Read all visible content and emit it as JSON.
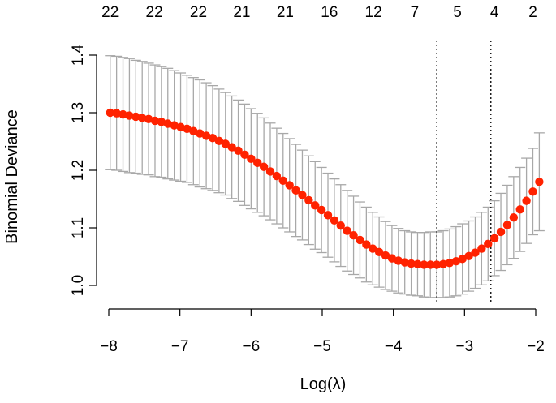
{
  "chart_data": {
    "type": "scatter",
    "xlabel": "Log(λ)",
    "ylabel": "Binomial Deviance",
    "xlim": [
      -8.1,
      -1.85
    ],
    "ylim": [
      0.975,
      1.425
    ],
    "x_ticks": [
      -8,
      -7,
      -6,
      -5,
      -4,
      -3,
      -2
    ],
    "x_tick_labels": [
      "−8",
      "−7",
      "−6",
      "−5",
      "−4",
      "−3",
      "−2"
    ],
    "y_ticks": [
      1.0,
      1.1,
      1.2,
      1.3,
      1.4
    ],
    "y_tick_labels": [
      "1.0",
      "1.1",
      "1.2",
      "1.3",
      "1.4"
    ],
    "top_axis": {
      "positions": [
        -7.98,
        -7.36,
        -6.74,
        -6.13,
        -5.52,
        -4.9,
        -4.28,
        -3.7,
        -3.1,
        -2.58,
        -2.04
      ],
      "labels": [
        "22",
        "22",
        "22",
        "21",
        "21",
        "16",
        "12",
        "7",
        "5",
        "4",
        "2"
      ]
    },
    "reference_lines": [
      -3.39,
      -2.63
    ],
    "point_color": "#ff2200",
    "errorbar_color": "#a8a8a8",
    "grid": false,
    "series": [
      {
        "x": [
          -7.98,
          -7.89,
          -7.8,
          -7.71,
          -7.62,
          -7.53,
          -7.44,
          -7.35,
          -7.26,
          -7.17,
          -7.08,
          -6.99,
          -6.9,
          -6.81,
          -6.72,
          -6.63,
          -6.54,
          -6.45,
          -6.36,
          -6.27,
          -6.18,
          -6.09,
          -6.0,
          -5.91,
          -5.82,
          -5.73,
          -5.64,
          -5.55,
          -5.46,
          -5.37,
          -5.28,
          -5.19,
          -5.1,
          -5.01,
          -4.92,
          -4.83,
          -4.74,
          -4.65,
          -4.56,
          -4.47,
          -4.38,
          -4.29,
          -4.2,
          -4.11,
          -4.02,
          -3.93,
          -3.84,
          -3.75,
          -3.66,
          -3.57,
          -3.48,
          -3.39,
          -3.3,
          -3.21,
          -3.12,
          -3.03,
          -2.94,
          -2.85,
          -2.76,
          -2.67,
          -2.58,
          -2.49,
          -2.4,
          -2.31,
          -2.22,
          -2.13,
          -2.04,
          -1.95
        ],
        "y": [
          1.3,
          1.299,
          1.297,
          1.295,
          1.293,
          1.291,
          1.289,
          1.286,
          1.284,
          1.281,
          1.278,
          1.275,
          1.272,
          1.268,
          1.264,
          1.26,
          1.256,
          1.251,
          1.246,
          1.24,
          1.234,
          1.227,
          1.22,
          1.213,
          1.206,
          1.198,
          1.19,
          1.182,
          1.174,
          1.165,
          1.157,
          1.148,
          1.139,
          1.131,
          1.122,
          1.113,
          1.104,
          1.095,
          1.087,
          1.079,
          1.071,
          1.064,
          1.058,
          1.052,
          1.047,
          1.043,
          1.04,
          1.038,
          1.037,
          1.036,
          1.036,
          1.036,
          1.037,
          1.039,
          1.042,
          1.046,
          1.051,
          1.057,
          1.064,
          1.072,
          1.082,
          1.093,
          1.105,
          1.118,
          1.132,
          1.147,
          1.163,
          1.18
        ],
        "y_upper": [
          1.399,
          1.398,
          1.396,
          1.394,
          1.391,
          1.389,
          1.386,
          1.383,
          1.38,
          1.377,
          1.373,
          1.369,
          1.365,
          1.361,
          1.357,
          1.352,
          1.347,
          1.341,
          1.335,
          1.329,
          1.322,
          1.315,
          1.307,
          1.299,
          1.291,
          1.282,
          1.273,
          1.264,
          1.255,
          1.245,
          1.235,
          1.225,
          1.215,
          1.205,
          1.195,
          1.185,
          1.175,
          1.165,
          1.155,
          1.145,
          1.136,
          1.127,
          1.119,
          1.111,
          1.104,
          1.099,
          1.095,
          1.093,
          1.092,
          1.092,
          1.093,
          1.093,
          1.095,
          1.098,
          1.102,
          1.107,
          1.112,
          1.119,
          1.127,
          1.136,
          1.147,
          1.16,
          1.174,
          1.189,
          1.205,
          1.221,
          1.238,
          1.265
        ],
        "y_lower": [
          1.201,
          1.2,
          1.198,
          1.196,
          1.195,
          1.193,
          1.192,
          1.189,
          1.188,
          1.185,
          1.183,
          1.181,
          1.179,
          1.175,
          1.171,
          1.168,
          1.165,
          1.161,
          1.157,
          1.151,
          1.146,
          1.139,
          1.133,
          1.127,
          1.121,
          1.114,
          1.107,
          1.1,
          1.093,
          1.085,
          1.079,
          1.071,
          1.063,
          1.057,
          1.049,
          1.041,
          1.033,
          1.025,
          1.019,
          1.013,
          1.006,
          1.001,
          0.997,
          0.993,
          0.99,
          0.987,
          0.985,
          0.983,
          0.982,
          0.98,
          0.979,
          0.979,
          0.979,
          0.98,
          0.982,
          0.985,
          0.99,
          0.995,
          1.001,
          1.008,
          1.017,
          1.026,
          1.036,
          1.047,
          1.059,
          1.073,
          1.088,
          1.095
        ]
      }
    ]
  }
}
